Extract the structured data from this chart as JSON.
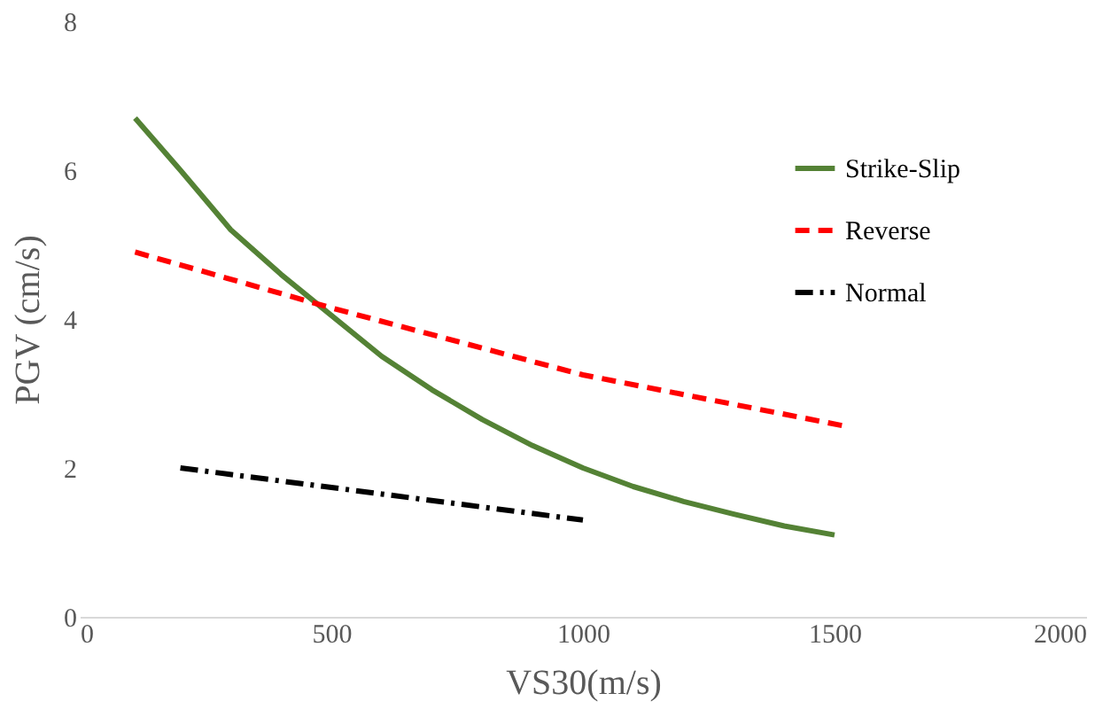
{
  "chart_data": {
    "type": "line",
    "xlabel": "VS30(m/s)",
    "ylabel": "PGV (cm/s)",
    "xlim": [
      0,
      2000
    ],
    "xticks": [
      0,
      500,
      1000,
      1500,
      2000
    ],
    "ylim": [
      0,
      8
    ],
    "yticks": [
      0,
      2,
      4,
      6,
      8
    ],
    "grid": false,
    "legend": "top right",
    "marker": "none",
    "series": [
      {
        "name": "Strike-Slip",
        "color": "#548235",
        "line_style": "solid",
        "x": [
          110,
          200,
          300,
          400,
          500,
          600,
          700,
          800,
          900,
          1000,
          1100,
          1200,
          1300,
          1400,
          1500
        ],
        "values": [
          6.7,
          6.0,
          5.2,
          4.6,
          4.05,
          3.5,
          3.05,
          2.65,
          2.3,
          2.0,
          1.75,
          1.55,
          1.38,
          1.22,
          1.1
        ]
      },
      {
        "name": "Reverse",
        "color": "#ff0000",
        "line_style": "dashed",
        "x": [
          110,
          500,
          1000,
          1530
        ],
        "values": [
          4.9,
          4.15,
          3.25,
          2.55
        ]
      },
      {
        "name": "Normal",
        "color": "#000000",
        "line_style": "dashdot",
        "x": [
          200,
          600,
          1000
        ],
        "values": [
          2.0,
          1.65,
          1.3
        ]
      }
    ]
  }
}
